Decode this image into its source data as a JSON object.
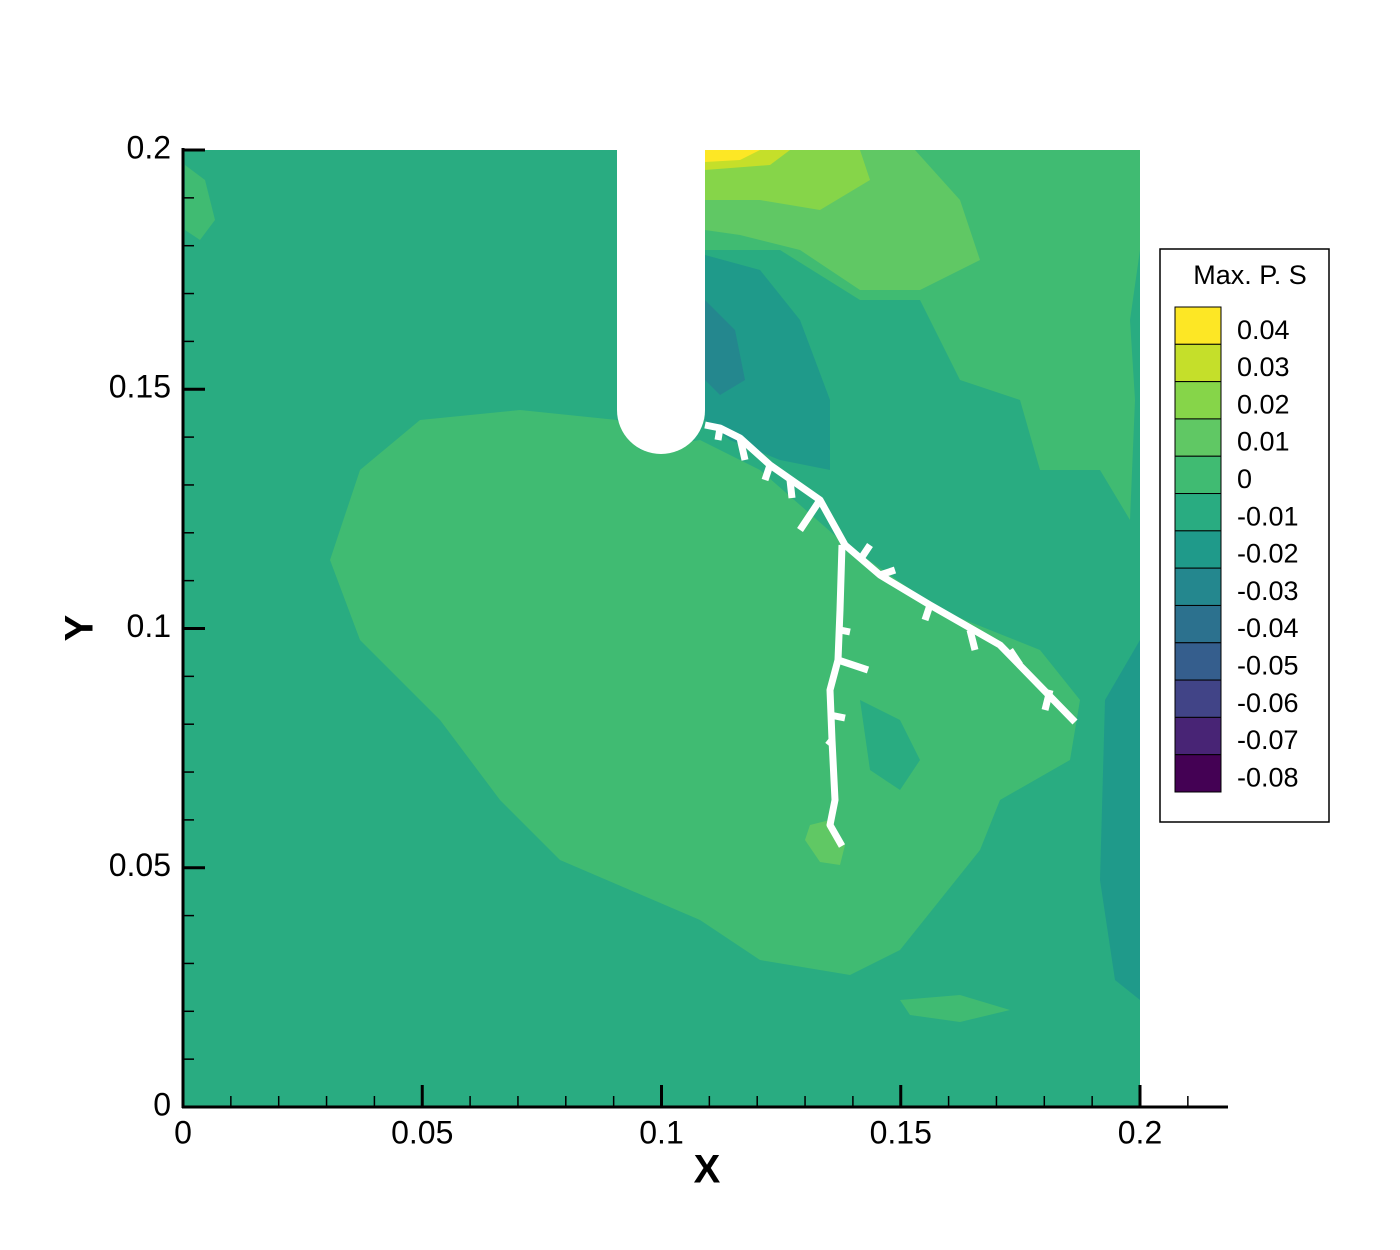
{
  "chart_data": {
    "type": "contour",
    "xlabel": "X",
    "ylabel": "Y",
    "xlim": [
      0,
      0.2184
    ],
    "ylim": [
      0,
      0.2
    ],
    "xticks": [
      0,
      0.05,
      0.1,
      0.15,
      0.2
    ],
    "yticks": [
      0,
      0.05,
      0.1,
      0.15,
      0.2
    ],
    "xminorticks": [
      0.01,
      0.02,
      0.03,
      0.04,
      0.06,
      0.07,
      0.08,
      0.09,
      0.11,
      0.12,
      0.13,
      0.14,
      0.16,
      0.17,
      0.18,
      0.19,
      0.21
    ],
    "yminorticks": [
      0.01,
      0.02,
      0.03,
      0.04,
      0.06,
      0.07,
      0.08,
      0.09,
      0.11,
      0.12,
      0.13,
      0.14,
      0.16,
      0.17,
      0.18,
      0.19
    ],
    "legend_title": "Max. P. S",
    "legend_position": "right",
    "levels": [
      {
        "value": 0.04,
        "color": "#fde725"
      },
      {
        "value": 0.03,
        "color": "#c5df2a"
      },
      {
        "value": 0.02,
        "color": "#86d549"
      },
      {
        "value": 0.01,
        "color": "#60c864"
      },
      {
        "value": 0,
        "color": "#40bb72"
      },
      {
        "value": -0.01,
        "color": "#29ac81"
      },
      {
        "value": -0.02,
        "color": "#1f9a8a"
      },
      {
        "value": -0.03,
        "color": "#24878e"
      },
      {
        "value": -0.04,
        "color": "#2c718e"
      },
      {
        "value": -0.05,
        "color": "#355e8d"
      },
      {
        "value": -0.06,
        "color": "#414487"
      },
      {
        "value": -0.07,
        "color": "#482475"
      },
      {
        "value": -0.08,
        "color": "#440154"
      }
    ]
  }
}
